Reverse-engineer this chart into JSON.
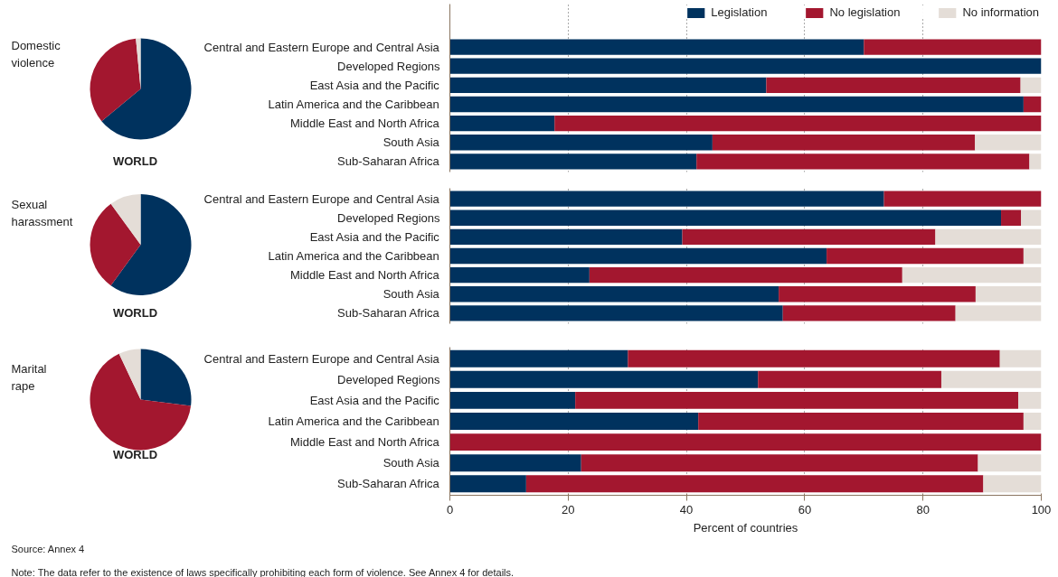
{
  "chart_data": [
    {
      "type": "pie",
      "title": "Domestic violence",
      "xlabel": "WORLD",
      "categories": [
        null,
        null,
        null
      ],
      "values": [
        64,
        34.5,
        1.5
      ],
      "colors": [
        "#00325e",
        "#a3172f",
        "#e4ddd7"
      ]
    },
    {
      "type": "bar",
      "orientation": "horizontal",
      "stacked": true,
      "categories": [
        "Central and Eastern Europe and Central Asia",
        "Developed Regions",
        "East Asia and the Pacific",
        "Latin America and the Caribbean",
        "Middle East and North Africa",
        "South Asia",
        "Sub-Saharan Africa"
      ],
      "series": [
        {
          "name": "Legislation",
          "color": "#00325e",
          "values": [
            70,
            100,
            53.5,
            97,
            17.7,
            44.4,
            41.7
          ]
        },
        {
          "name": "No legislation",
          "color": "#a3172f",
          "values": [
            30,
            0,
            43,
            3,
            82.3,
            44.4,
            56.3
          ]
        },
        {
          "name": "No information",
          "color": "#e4ddd7",
          "values": [
            0,
            0,
            3.5,
            0,
            0,
            11.2,
            2
          ]
        }
      ],
      "xlim": [
        0,
        100
      ],
      "xticks": [
        0,
        20,
        40,
        60,
        80,
        100
      ],
      "grid": "x",
      "tick_labels": "y",
      "legend": "top right"
    },
    {
      "type": "pie",
      "title": "Sexual harassment",
      "xlabel": "WORLD",
      "categories": [
        null,
        null,
        null
      ],
      "values": [
        60,
        30,
        10
      ],
      "colors": [
        "#00325e",
        "#a3172f",
        "#e4ddd7"
      ]
    },
    {
      "type": "bar",
      "orientation": "horizontal",
      "stacked": true,
      "categories": [
        "Central and Eastern Europe and Central Asia",
        "Developed Regions",
        "East Asia and the Pacific",
        "Latin America and the Caribbean",
        "Middle East and North Africa",
        "South Asia",
        "Sub-Saharan Africa"
      ],
      "series": [
        {
          "color": "#00325e",
          "values": [
            73.4,
            93.2,
            39.3,
            63.7,
            23.6,
            55.6,
            56.3
          ]
        },
        {
          "color": "#a3172f",
          "values": [
            26.6,
            3.4,
            42.8,
            33.3,
            52.9,
            33.3,
            29.2
          ]
        },
        {
          "color": "#e4ddd7",
          "values": [
            0,
            3.4,
            17.9,
            3,
            23.5,
            11.1,
            14.5
          ]
        }
      ],
      "xlim": [
        0,
        100
      ],
      "xticks": [
        0,
        20,
        40,
        60,
        80,
        100
      ],
      "grid": "x",
      "tick_labels": "y"
    },
    {
      "type": "pie",
      "title": "Marital rape",
      "xlabel": "WORLD",
      "categories": [
        null,
        null,
        null
      ],
      "values": [
        27,
        66,
        7
      ],
      "colors": [
        "#00325e",
        "#a3172f",
        "#e4ddd7"
      ]
    },
    {
      "type": "bar",
      "orientation": "horizontal",
      "stacked": true,
      "categories": [
        "Central and Eastern Europe and Central Asia",
        "Developed Regions",
        "East Asia and the Pacific",
        "Latin America and the Caribbean",
        "Middle East and North Africa",
        "South Asia",
        "Sub-Saharan Africa"
      ],
      "series": [
        {
          "color": "#00325e",
          "values": [
            30.1,
            52.1,
            21.2,
            42,
            0,
            22.2,
            12.9
          ]
        },
        {
          "color": "#a3172f",
          "values": [
            62.9,
            31,
            74.9,
            55,
            100,
            67.1,
            77.3
          ]
        },
        {
          "color": "#e4ddd7",
          "values": [
            7,
            16.9,
            3.9,
            3,
            0,
            10.7,
            9.8
          ]
        }
      ],
      "xlim": [
        0,
        100
      ],
      "xticks": [
        0,
        20,
        40,
        60,
        80,
        100
      ],
      "grid": "x",
      "xlabel": "Percent of countries",
      "annotations": [
        "Source: Annex 4",
        "Note: The data refer to the existence of laws specifically prohibiting each form of violence. See Annex 4 for details."
      ]
    }
  ]
}
